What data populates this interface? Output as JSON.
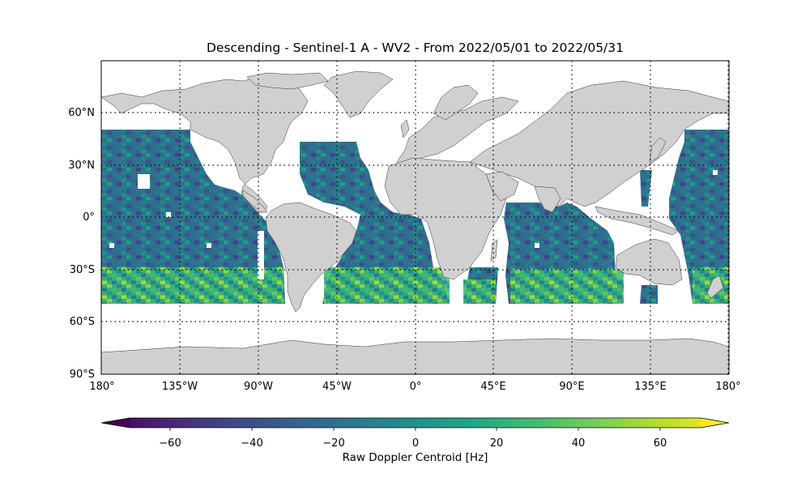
{
  "map": {
    "title": "Descending - Sentinel-1 A - WV2 - From 2022/05/01 to 2022/05/31",
    "lat_ticks": [
      "60°N",
      "30°N",
      "0°",
      "30°S",
      "60°S",
      "90°S"
    ],
    "lon_ticks": [
      "180°",
      "135°W",
      "90°W",
      "45°W",
      "0°",
      "45°E",
      "90°E",
      "135°E",
      "180°"
    ],
    "projection": "equirectangular (plate carrée)",
    "land_color": "#d0d0d0",
    "ocean_color": "#ffffff",
    "gridlines": "dotted"
  },
  "colorbar": {
    "label": "Raw Doppler Centroid [Hz]",
    "tick_labels": [
      "−60",
      "−40",
      "−20",
      "0",
      "20",
      "40",
      "60"
    ],
    "range": [
      -75,
      75
    ],
    "extend": "both",
    "colormap": "viridis"
  }
}
